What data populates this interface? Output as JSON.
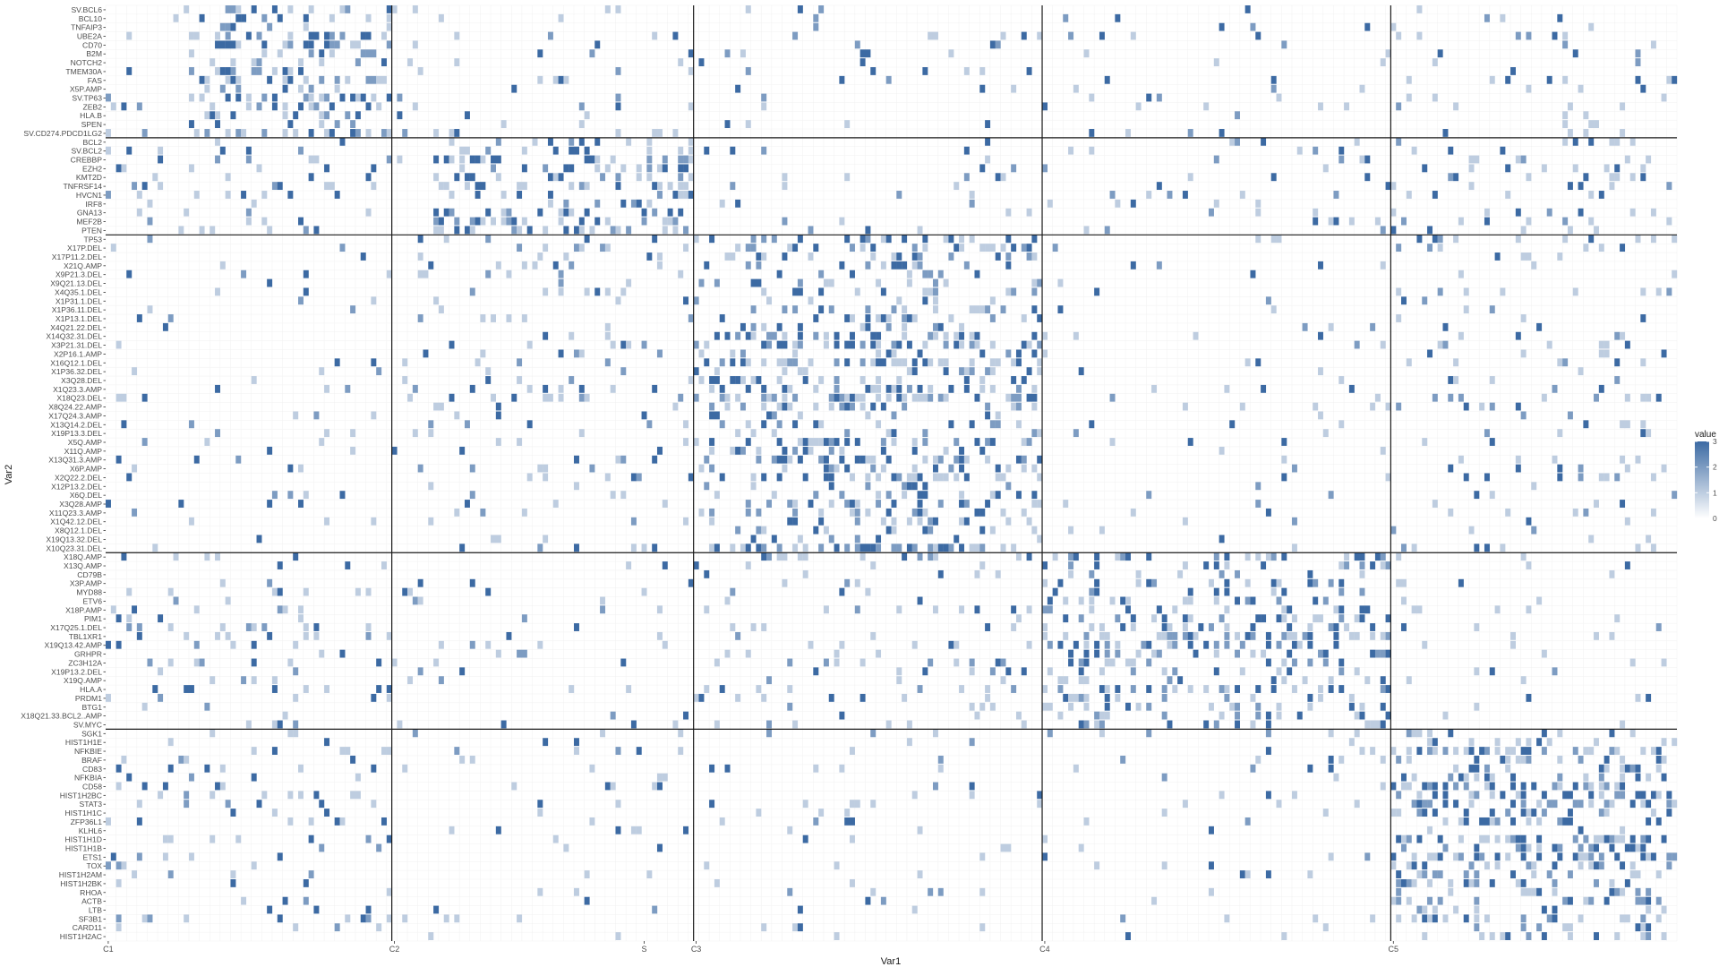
{
  "chart_data": {
    "type": "heatmap",
    "title": "",
    "xlabel": "Var1",
    "ylabel": "Var2",
    "legend_title": "value",
    "legend_ticks": [
      0,
      1,
      2,
      3
    ],
    "value_range": [
      0,
      3
    ],
    "color_low": "#ffffff",
    "color_high": "#3c6aa3",
    "x_labels": [
      "C1",
      "C2",
      "S",
      "C3",
      "C4",
      "C5"
    ],
    "x_label_columns": [
      0,
      55,
      103,
      113,
      180,
      247
    ],
    "n_columns": 302,
    "cluster_column_boundaries": [
      55,
      113,
      180,
      247
    ],
    "cluster_row_boundaries": [
      15,
      26,
      62,
      82
    ],
    "y_labels": [
      "SV.BCL6",
      "BCL10",
      "TNFAIP3",
      "UBE2A",
      "CD70",
      "B2M",
      "NOTCH2",
      "TMEM30A",
      "FAS",
      "X5P.AMP",
      "SV.TP63",
      "ZEB2",
      "HLA.B",
      "SPEN",
      "SV.CD274.PDCD1LG2",
      "BCL2",
      "SV.BCL2",
      "CREBBP",
      "EZH2",
      "KMT2D",
      "TNFRSF14",
      "HVCN1",
      "IRF8",
      "GNA13",
      "MEF2B",
      "PTEN",
      "TP53",
      "X17P.DEL",
      "X17P11.2.DEL",
      "X21Q.AMP",
      "X9P21.3.DEL",
      "X9Q21.13.DEL",
      "X4Q35.1.DEL",
      "X1P31.1.DEL",
      "X1P36.11.DEL",
      "X1P13.1.DEL",
      "X4Q21.22.DEL",
      "X14Q32.31.DEL",
      "X3P21.31.DEL",
      "X2P16.1.AMP",
      "X16Q12.1.DEL",
      "X1P36.32.DEL",
      "X3Q28.DEL",
      "X1Q23.3.AMP",
      "X18Q23.DEL",
      "X8Q24.22.AMP",
      "X17Q24.3.AMP",
      "X13Q14.2.DEL",
      "X19P13.3.DEL",
      "X5Q.AMP",
      "X11Q.AMP",
      "X13Q31.3.AMP",
      "X6P.AMP",
      "X2Q22.2.DEL",
      "X12P13.2.DEL",
      "X6Q.DEL",
      "X3Q28.AMP",
      "X11Q23.3.AMP",
      "X1Q42.12.DEL",
      "X8Q12.1.DEL",
      "X19Q13.32.DEL",
      "X10Q23.31.DEL",
      "X18Q.AMP",
      "X13Q.AMP",
      "CD79B",
      "X3P.AMP",
      "MYD88",
      "ETV6",
      "X18P.AMP",
      "PIM1",
      "X17Q25.1.DEL",
      "TBL1XR1",
      "X19Q13.42.AMP",
      "GRHPR",
      "ZC3H12A",
      "X19P13.2.DEL",
      "X19Q.AMP",
      "HLA.A",
      "PRDM1",
      "BTG1",
      "X18Q21.33.BCL2..AMP",
      "SV.MYC",
      "SGK1",
      "HIST1H1E",
      "NFKBIE",
      "BRAF",
      "CD83",
      "NFKBIA",
      "CD58",
      "HIST1H2BC",
      "STAT3",
      "HIST1H1C",
      "ZFP36L1",
      "KLHL6",
      "HIST1H1D",
      "HIST1H1B",
      "ETS1",
      "TOX",
      "HIST1H2AM",
      "HIST1H2BK",
      "RHOA",
      "ACTB",
      "LTB",
      "SF3B1",
      "CARD11",
      "HIST1H2AC"
    ],
    "row_group_hotspots": [
      {
        "rows": [
          0,
          14
        ],
        "dense_columns": [
          [
            15,
            55
          ],
          [
            0,
            10
          ],
          [
            280,
            302
          ]
        ],
        "sparse_columns": [
          [
            55,
            302
          ]
        ]
      },
      {
        "rows": [
          15,
          25
        ],
        "dense_columns": [
          [
            63,
            113
          ],
          [
            0,
            55
          ],
          [
            234,
            247
          ],
          [
            247,
            302
          ]
        ],
        "sparse_columns": [
          [
            113,
            247
          ]
        ]
      },
      {
        "rows": [
          26,
          61
        ],
        "dense_columns": [
          [
            113,
            180
          ],
          [
            55,
            113
          ],
          [
            247,
            302
          ]
        ],
        "sparse_columns": [
          [
            0,
            55
          ],
          [
            180,
            247
          ]
        ]
      },
      {
        "rows": [
          62,
          81
        ],
        "dense_columns": [
          [
            180,
            247
          ],
          [
            0,
            55
          ],
          [
            113,
            180
          ]
        ],
        "sparse_columns": [
          [
            55,
            113
          ],
          [
            247,
            302
          ]
        ]
      },
      {
        "rows": [
          82,
          105
        ],
        "dense_columns": [
          [
            247,
            302
          ],
          [
            0,
            55
          ]
        ],
        "sparse_columns": [
          [
            55,
            247
          ]
        ]
      }
    ]
  }
}
